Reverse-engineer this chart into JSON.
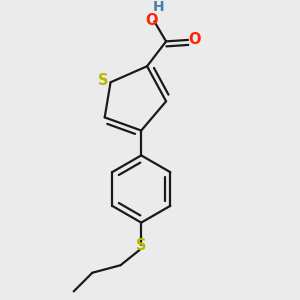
{
  "background_color": "#ebebeb",
  "bond_color": "#1a1a1a",
  "S_thiophene_color": "#b8b800",
  "S_thio_color": "#b8b800",
  "O_color": "#ff2200",
  "H_color": "#4a7fa5",
  "lw": 1.6,
  "dbo": 0.018,
  "font_size": 10.5,
  "xlim": [
    0.05,
    0.75
  ],
  "ylim": [
    0.02,
    1.0
  ],
  "figsize": [
    3.0,
    3.0
  ],
  "dpi": 100
}
